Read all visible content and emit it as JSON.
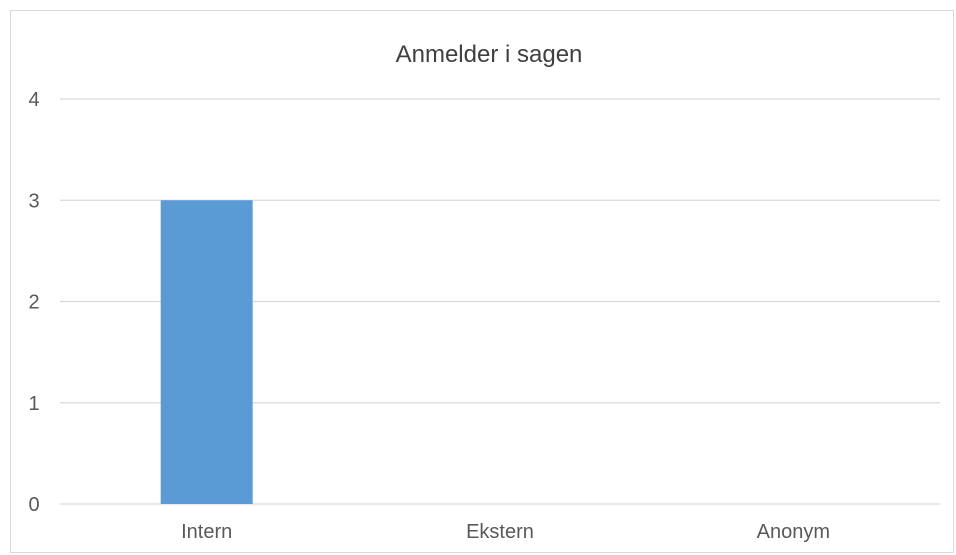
{
  "chart_data": {
    "type": "bar",
    "title": "Anmelder i sagen",
    "categories": [
      "Intern",
      "Ekstern",
      "Anonym"
    ],
    "values": [
      3,
      0,
      0
    ],
    "ylim": [
      0,
      4
    ],
    "yticks": [
      0,
      1,
      2,
      3,
      4
    ],
    "xlabel": "",
    "ylabel": "",
    "grid": true,
    "legend": "none",
    "colors": {
      "bar": "#5b9bd5",
      "grid": "#d9d9d9",
      "text": "#595959"
    }
  }
}
